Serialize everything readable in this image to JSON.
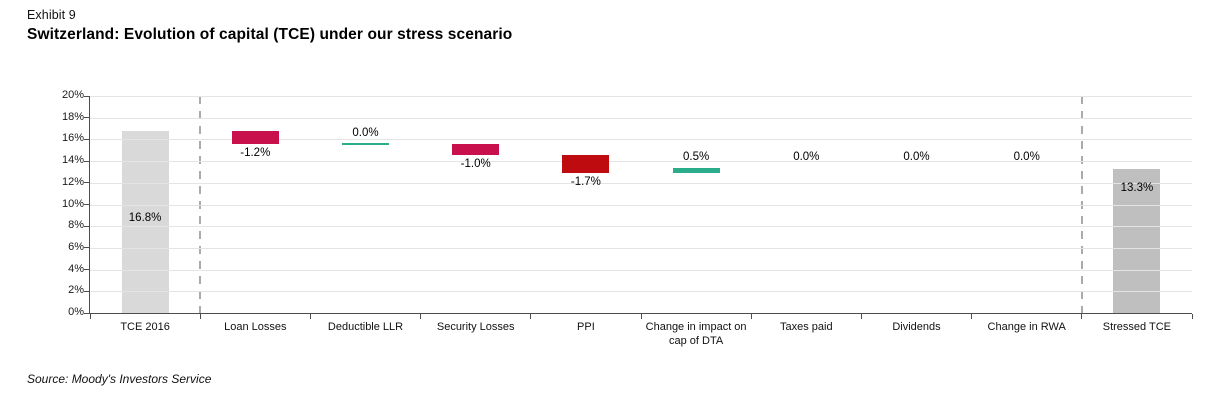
{
  "header": {
    "exhibit": "Exhibit 9",
    "title": "Switzerland: Evolution of capital (TCE) under our stress scenario"
  },
  "source": "Source: Moody's Investors Service",
  "chart_data": {
    "type": "bar",
    "subtype": "waterfall",
    "title": "Switzerland: Evolution of capital (TCE) under our stress scenario",
    "ylabel": "",
    "xlabel": "",
    "ylim": [
      0,
      20
    ],
    "ytick_step": 2,
    "ytick_suffix": "%",
    "grid": true,
    "legend": "none",
    "categories": [
      "TCE 2016",
      "Loan Losses",
      "Deductible LLR",
      "Security Losses",
      "PPI",
      "Change in impact on cap of DTA",
      "Taxes paid",
      "Dividends",
      "Change in RWA",
      "Stressed TCE"
    ],
    "points": [
      {
        "label": "TCE 2016",
        "value": 16.8,
        "kind": "absolute",
        "display": "16.8%",
        "color": "#d9d9d9",
        "label_pos": "inside-middle"
      },
      {
        "label": "Loan Losses",
        "value": -1.2,
        "kind": "delta",
        "display": "-1.2%",
        "color": "#c8104c",
        "label_pos": "below"
      },
      {
        "label": "Deductible LLR",
        "value": 0.0,
        "kind": "delta",
        "display": "0.0%",
        "color": "#2bad8c",
        "label_pos": "above",
        "zero_line": true
      },
      {
        "label": "Security Losses",
        "value": -1.0,
        "kind": "delta",
        "display": "-1.0%",
        "color": "#c8104c",
        "label_pos": "below"
      },
      {
        "label": "PPI",
        "value": -1.7,
        "kind": "delta",
        "display": "-1.7%",
        "color": "#be0b10",
        "label_pos": "below"
      },
      {
        "label": "Change in impact on cap of DTA",
        "value": 0.5,
        "kind": "delta",
        "display": "0.5%",
        "color": "#2bad8c",
        "label_pos": "above"
      },
      {
        "label": "Taxes paid",
        "value": 0.0,
        "kind": "delta",
        "display": "0.0%",
        "color": "#2bad8c",
        "label_pos": "above",
        "zero_line": false
      },
      {
        "label": "Dividends",
        "value": 0.0,
        "kind": "delta",
        "display": "0.0%",
        "color": "#2bad8c",
        "label_pos": "above",
        "zero_line": false
      },
      {
        "label": "Change in RWA",
        "value": 0.0,
        "kind": "delta",
        "display": "0.0%",
        "color": "#2bad8c",
        "label_pos": "above",
        "zero_line": false
      },
      {
        "label": "Stressed TCE",
        "value": 13.3,
        "kind": "absolute",
        "display": "13.3%",
        "color": "#bfbfbf",
        "label_pos": "inside-top"
      }
    ],
    "separator_boundaries": [
      1,
      9
    ],
    "colors": {
      "loss_crimson": "#c8104c",
      "loss_red": "#be0b10",
      "gain_teal": "#2bad8c",
      "start_bar_gray": "#d9d9d9",
      "end_bar_gray": "#bfbfbf",
      "gridline": "#e4e4e4",
      "axis": "#4d4d4d",
      "separator_dash": "#ababab"
    }
  }
}
